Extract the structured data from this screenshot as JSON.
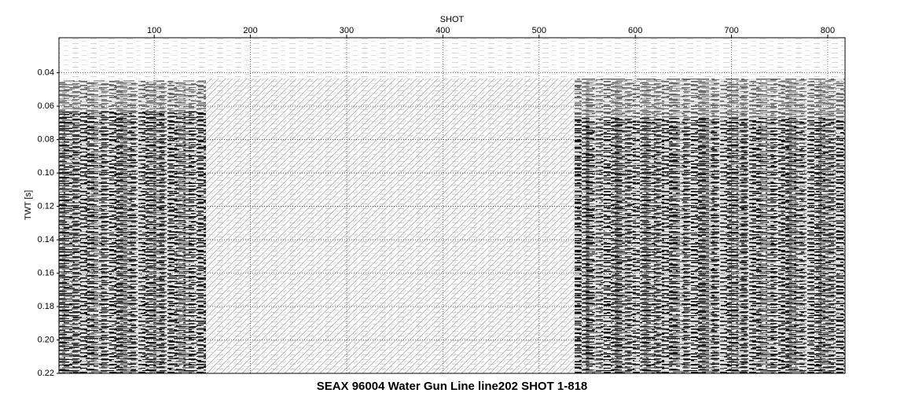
{
  "chart_data": {
    "type": "seismic",
    "title": "SEAX 96004 Water Gun Line line202 SHOT 1-818",
    "x_label": "SHOT",
    "y_label": "TWT [s]",
    "x_axis_position": "top",
    "y_inverted": true,
    "grid": true,
    "xlim": [
      1,
      818
    ],
    "xticks": [
      100,
      200,
      300,
      400,
      500,
      600,
      700,
      800
    ],
    "ylim": [
      0.019,
      0.22
    ],
    "yticks": [
      0.04,
      0.06,
      0.08,
      {
        "value": 0.1,
        "label": "0.10"
      },
      0.12,
      0.14,
      0.16,
      0.18,
      {
        "value": 0.2,
        "label": "0.20"
      },
      0.22
    ]
  }
}
